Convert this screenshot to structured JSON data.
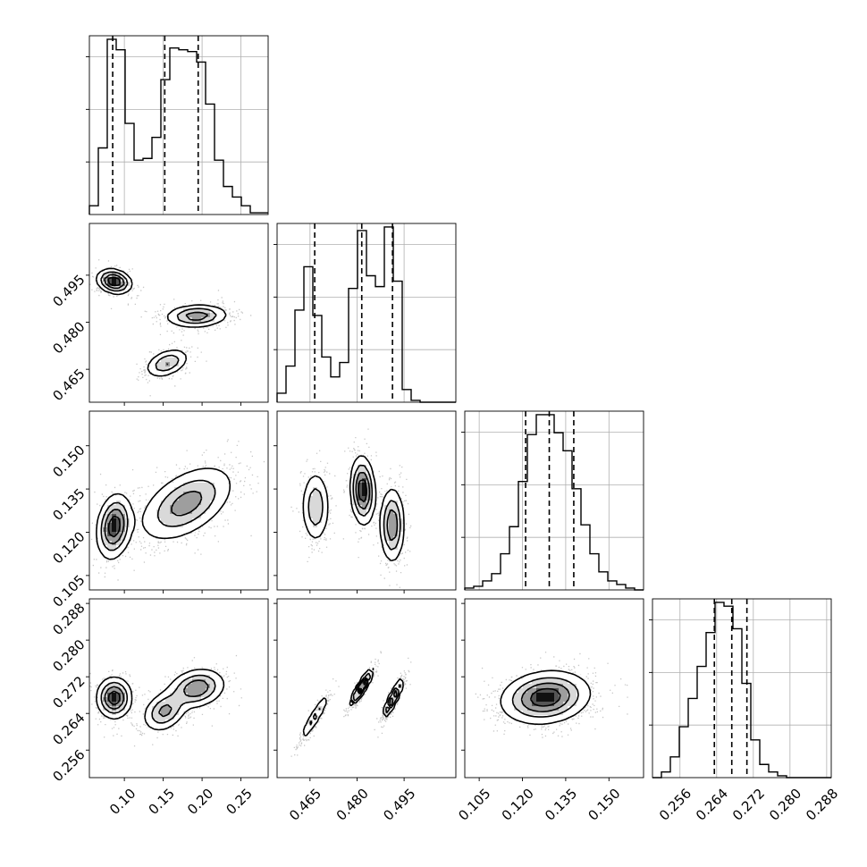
{
  "chart_data": {
    "type": "corner",
    "grid": true,
    "variables": [
      {
        "range": [
          0.055,
          0.285
        ],
        "ticks": [
          "0.10",
          "0.15",
          "0.20",
          "0.25"
        ],
        "quantiles": [
          0.085,
          0.152,
          0.195
        ],
        "histogram": {
          "edges": [
            0.055,
            0.0665,
            0.078,
            0.0895,
            0.101,
            0.1125,
            0.124,
            0.1355,
            0.147,
            0.1585,
            0.17,
            0.1815,
            0.193,
            0.2045,
            0.216,
            0.2275,
            0.239,
            0.2505,
            0.262,
            0.2735,
            0.285
          ],
          "counts": [
            0.05,
            0.38,
            1.0,
            0.94,
            0.52,
            0.31,
            0.32,
            0.44,
            0.77,
            0.95,
            0.94,
            0.93,
            0.87,
            0.63,
            0.31,
            0.16,
            0.1,
            0.05,
            0.01,
            0.01
          ]
        }
      },
      {
        "range": [
          0.4545,
          0.5115
        ],
        "ticks": [
          "0.465",
          "0.480",
          "0.495"
        ],
        "quantiles": [
          0.4665,
          0.4815,
          0.4913
        ],
        "histogram": {
          "edges": [
            0.4545,
            0.45735,
            0.4602,
            0.46305,
            0.4659,
            0.46875,
            0.4716,
            0.47445,
            0.4773,
            0.48015,
            0.483,
            0.48585,
            0.4887,
            0.49155,
            0.4944,
            0.49725,
            0.5001,
            0.50295,
            0.5058,
            0.50865,
            0.5115
          ],
          "counts": [
            0.05,
            0.2,
            0.51,
            0.75,
            0.48,
            0.25,
            0.14,
            0.22,
            0.63,
            0.95,
            0.7,
            0.64,
            0.97,
            0.67,
            0.07,
            0.01,
            0.0,
            0.0,
            0.0,
            0.0
          ]
        }
      },
      {
        "range": [
          0.1,
          0.162
        ],
        "ticks": [
          "0.105",
          "0.120",
          "0.135",
          "0.150"
        ],
        "quantiles": [
          0.1211,
          0.1293,
          0.1378
        ],
        "histogram": {
          "edges": [
            0.1,
            0.1031,
            0.1062,
            0.1093,
            0.1124,
            0.1155,
            0.1186,
            0.1217,
            0.1248,
            0.1279,
            0.131,
            0.1341,
            0.1372,
            0.1403,
            0.1434,
            0.1465,
            0.1496,
            0.1527,
            0.1558,
            0.1589,
            0.162
          ],
          "counts": [
            0.01,
            0.02,
            0.05,
            0.09,
            0.2,
            0.35,
            0.6,
            0.86,
            0.97,
            0.97,
            0.87,
            0.77,
            0.56,
            0.36,
            0.2,
            0.1,
            0.05,
            0.03,
            0.01,
            0.0
          ]
        }
      },
      {
        "range": [
          0.25,
          0.289
        ],
        "ticks": [
          "0.256",
          "0.264",
          "0.272",
          "0.280",
          "0.288"
        ],
        "quantiles": [
          0.2635,
          0.2673,
          0.2706
        ],
        "histogram": {
          "edges": [
            0.25,
            0.25195,
            0.2539,
            0.25585,
            0.2578,
            0.25975,
            0.2617,
            0.26365,
            0.2656,
            0.26755,
            0.2695,
            0.27145,
            0.2734,
            0.27535,
            0.2773,
            0.27925,
            0.2812,
            0.28315,
            0.2851,
            0.28705,
            0.289
          ],
          "counts": [
            0.0,
            0.03,
            0.11,
            0.27,
            0.42,
            0.59,
            0.77,
            0.93,
            0.91,
            0.79,
            0.5,
            0.2,
            0.07,
            0.03,
            0.01,
            0.0,
            0.0,
            0.0,
            0.0,
            0.0
          ]
        }
      }
    ],
    "contour_levels": 4,
    "pairs": [
      {
        "x_var": 0,
        "y_var": 1,
        "modes": [
          {
            "mx": 0.087,
            "my": 0.493,
            "sx": 0.011,
            "sy": 0.0019,
            "rho": -0.2,
            "w": 0.34
          },
          {
            "mx": 0.193,
            "my": 0.482,
            "sx": 0.02,
            "sy": 0.0018,
            "rho": 0.1,
            "w": 0.4
          },
          {
            "mx": 0.155,
            "my": 0.467,
            "sx": 0.014,
            "sy": 0.0023,
            "rho": 0.4,
            "w": 0.26
          }
        ]
      },
      {
        "x_var": 0,
        "y_var": 2,
        "modes": [
          {
            "mx": 0.087,
            "my": 0.122,
            "sx": 0.011,
            "sy": 0.0055,
            "rho": 0.2,
            "w": 0.34
          },
          {
            "mx": 0.18,
            "my": 0.13,
            "sx": 0.03,
            "sy": 0.0065,
            "rho": 0.5,
            "w": 0.66
          }
        ]
      },
      {
        "x_var": 0,
        "y_var": 3,
        "modes": [
          {
            "mx": 0.087,
            "my": 0.2674,
            "sx": 0.011,
            "sy": 0.0022,
            "rho": 0.0,
            "w": 0.34
          },
          {
            "mx": 0.193,
            "my": 0.2695,
            "sx": 0.018,
            "sy": 0.0021,
            "rho": 0.2,
            "w": 0.4
          },
          {
            "mx": 0.152,
            "my": 0.2645,
            "sx": 0.014,
            "sy": 0.0022,
            "rho": 0.3,
            "w": 0.26
          }
        ]
      },
      {
        "x_var": 1,
        "y_var": 2,
        "modes": [
          {
            "mx": 0.4668,
            "my": 0.1288,
            "sx": 0.0022,
            "sy": 0.0062,
            "rho": 0.0,
            "w": 0.26
          },
          {
            "mx": 0.4818,
            "my": 0.1345,
            "sx": 0.0019,
            "sy": 0.0058,
            "rho": -0.1,
            "w": 0.4
          },
          {
            "mx": 0.4912,
            "my": 0.1225,
            "sx": 0.0019,
            "sy": 0.0064,
            "rho": 0.0,
            "w": 0.34
          }
        ]
      },
      {
        "x_var": 1,
        "y_var": 3,
        "modes": [
          {
            "mx": 0.4665,
            "my": 0.2632,
            "sx": 0.0025,
            "sy": 0.0028,
            "rho": 0.93,
            "w": 0.26
          },
          {
            "mx": 0.4815,
            "my": 0.2698,
            "sx": 0.0018,
            "sy": 0.002,
            "rho": 0.9,
            "w": 0.4
          },
          {
            "mx": 0.4915,
            "my": 0.2673,
            "sx": 0.0017,
            "sy": 0.0023,
            "rho": 0.9,
            "w": 0.34
          }
        ]
      },
      {
        "x_var": 2,
        "y_var": 3,
        "modes": [
          {
            "mx": 0.128,
            "my": 0.2675,
            "sx": 0.0075,
            "sy": 0.0028,
            "rho": 0.15,
            "w": 1.0
          }
        ]
      }
    ]
  }
}
